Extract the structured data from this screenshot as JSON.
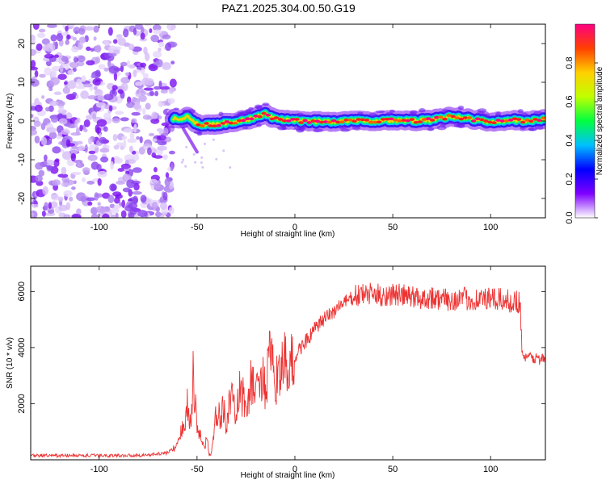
{
  "title": "PAZ1.2025.304.00.50.G19",
  "chart_data": [
    {
      "type": "heatmap",
      "name": "spectrogram",
      "xlabel": "Height of straight line (km)",
      "ylabel": "Frequency (Hz)",
      "xlim": [
        -135,
        128
      ],
      "ylim": [
        -25,
        25
      ],
      "xticks": [
        -100,
        -50,
        0,
        50,
        100
      ],
      "yticks": [
        -20,
        -10,
        0,
        10,
        20
      ],
      "colorbar": {
        "label": "Normalized spectral amplitude",
        "range": [
          0,
          1
        ],
        "ticks": [
          "0.0",
          "0.2",
          "0.4",
          "0.6",
          "0.8"
        ],
        "tick_values": [
          0.0,
          0.2,
          0.4,
          0.6,
          0.8
        ],
        "colors": [
          "#ffffff",
          "#7f00ff",
          "#0000ff",
          "#00c0ff",
          "#00ff40",
          "#c0ff00",
          "#ffd000",
          "#ff4000",
          "#ff0080"
        ]
      },
      "noise_region_x": [
        -135,
        -62
      ],
      "ridge": {
        "x": [
          -62,
          -55,
          -50,
          -45,
          -40,
          -35,
          -30,
          -25,
          -20,
          -15,
          -10,
          -5,
          0,
          10,
          20,
          30,
          40,
          50,
          60,
          70,
          80,
          90,
          100,
          110,
          120,
          128
        ],
        "freq": [
          0.5,
          1.0,
          -0.8,
          -1.0,
          -0.8,
          -0.5,
          -0.2,
          0.3,
          1.0,
          1.8,
          0.6,
          0.2,
          0.0,
          -0.1,
          -0.2,
          0.3,
          0.0,
          0.2,
          0.0,
          0.3,
          1.2,
          0.5,
          -0.3,
          0.2,
          0.0,
          0.5
        ]
      }
    },
    {
      "type": "line",
      "name": "snr",
      "xlabel": "Height of straight line (km)",
      "ylabel": "SNR (10 * v/v)",
      "xlim": [
        -135,
        128
      ],
      "ylim": [
        0,
        6900
      ],
      "xticks": [
        -100,
        -50,
        0,
        50,
        100
      ],
      "yticks": [
        2000,
        4000,
        6000
      ],
      "color": "#ee3333",
      "series": [
        {
          "name": "SNR",
          "x": [
            -135,
            -110,
            -90,
            -75,
            -65,
            -60,
            -57,
            -55,
            -53,
            -52,
            -50,
            -49,
            -47,
            -46,
            -45,
            -44,
            -43,
            -42,
            -41,
            -40,
            -38,
            -36,
            -35,
            -33,
            -30,
            -28,
            -25,
            -22,
            -20,
            -18,
            -15,
            -13,
            -10,
            -8,
            -6,
            -5,
            -3,
            0,
            2,
            5,
            8,
            10,
            12,
            15,
            18,
            20,
            23,
            25,
            28,
            30,
            35,
            40,
            45,
            50,
            55,
            60,
            65,
            70,
            75,
            80,
            85,
            90,
            95,
            100,
            105,
            110,
            115,
            116,
            117,
            118,
            120,
            125,
            128
          ],
          "y": [
            150,
            150,
            150,
            170,
            250,
            500,
            1200,
            1900,
            1300,
            2900,
            1200,
            900,
            700,
            350,
            1000,
            200,
            150,
            600,
            1100,
            1800,
            1400,
            2000,
            1200,
            2200,
            1600,
            2500,
            1900,
            2800,
            2200,
            3200,
            2400,
            3700,
            2600,
            3500,
            3000,
            3500,
            3200,
            3600,
            3900,
            4200,
            4400,
            4650,
            4800,
            5000,
            5200,
            5300,
            5500,
            5600,
            5700,
            5800,
            5900,
            5900,
            5850,
            5900,
            5850,
            5800,
            5750,
            5800,
            5700,
            5700,
            5750,
            5700,
            5750,
            5700,
            5700,
            5650,
            5650,
            4000,
            3700,
            3600,
            3650,
            3600,
            3550
          ]
        }
      ]
    }
  ]
}
